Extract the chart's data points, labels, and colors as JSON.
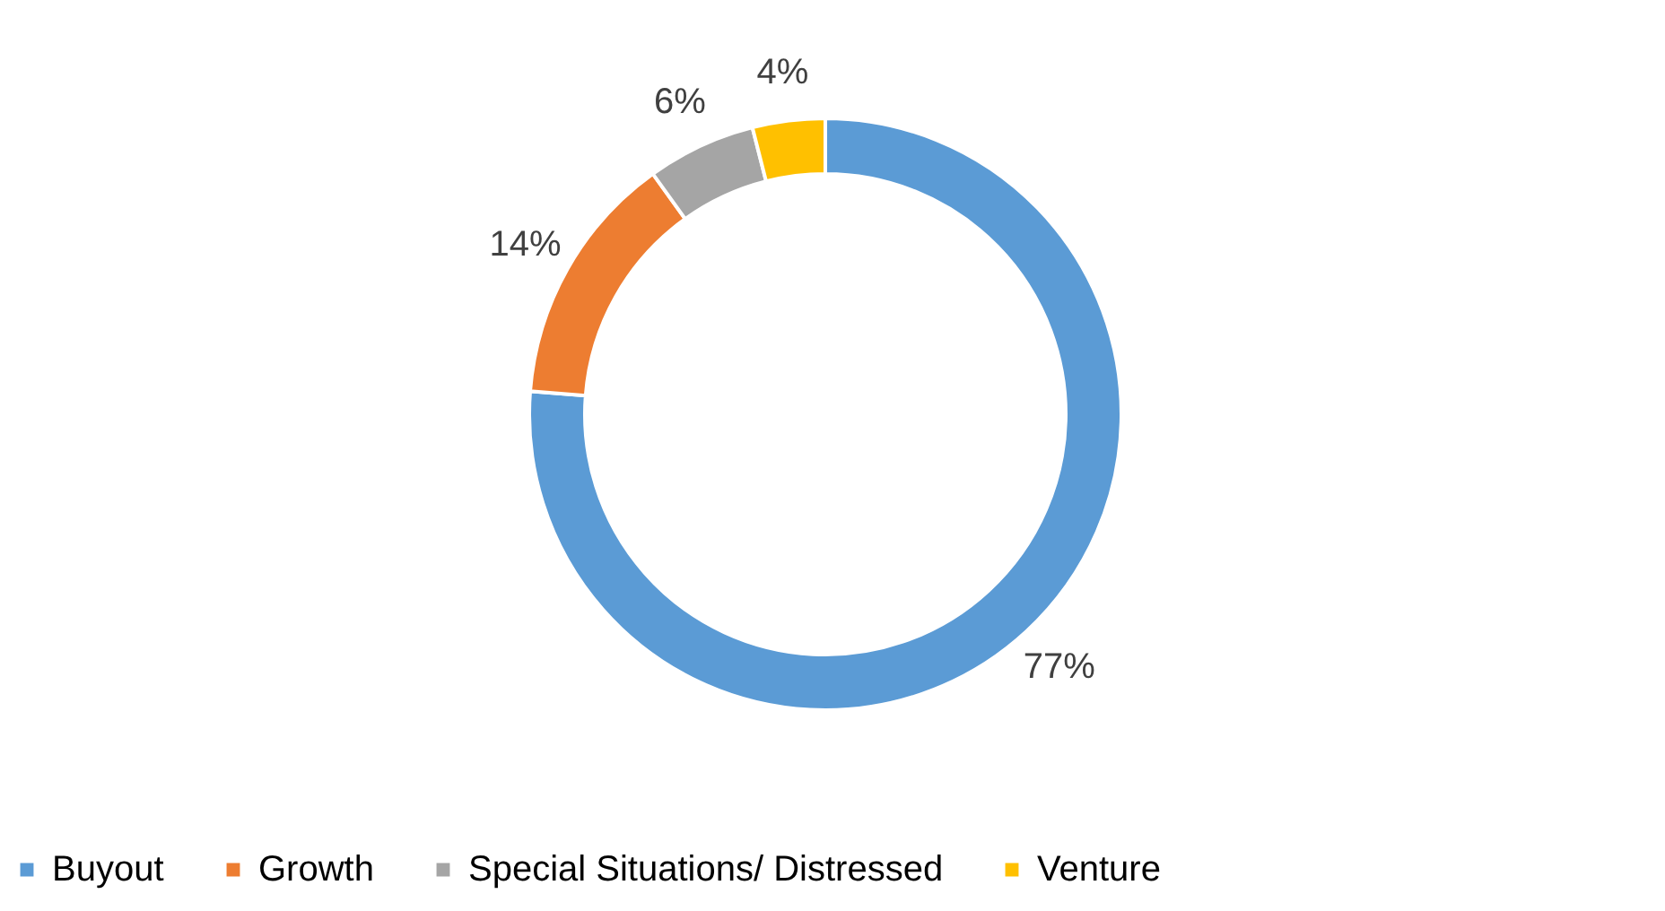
{
  "chart_data": {
    "type": "donut",
    "categories": [
      "Buyout",
      "Growth",
      "Special Situations/ Distressed",
      "Venture"
    ],
    "values": [
      77,
      14,
      6,
      4
    ],
    "colors": [
      "#5b9bd5",
      "#ed7d31",
      "#a5a5a5",
      "#ffc000"
    ],
    "value_labels": [
      "77%",
      "14%",
      "6%",
      "4%"
    ],
    "legend": "bottom"
  }
}
